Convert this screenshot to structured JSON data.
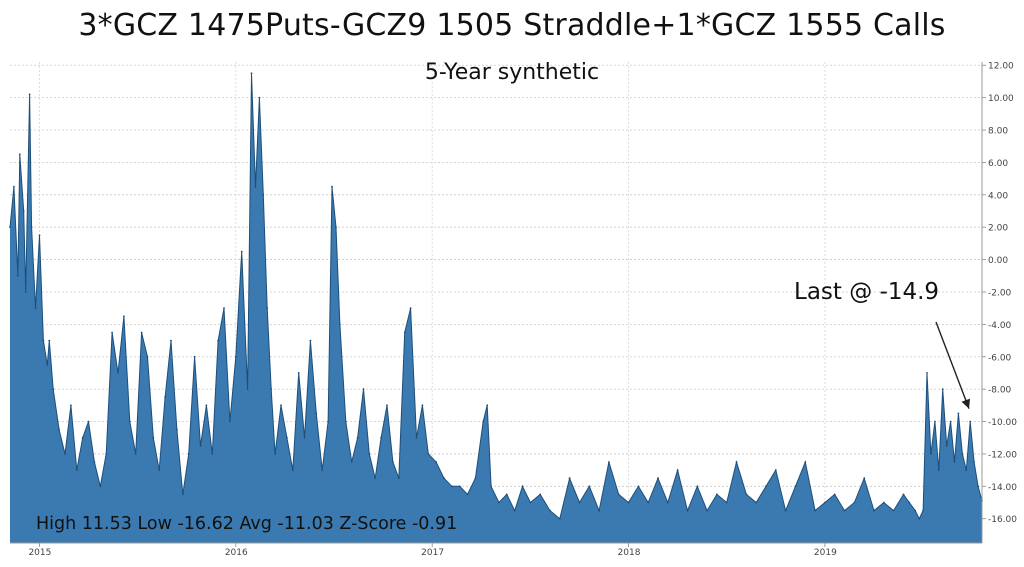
{
  "title": "3*GCZ 1475Puts-GCZ9 1505 Straddle+1*GCZ 1555 Calls",
  "subtitle": "5-Year synthetic",
  "annotation_last": "Last @ -14.9",
  "stats_text": "High 11.53 Low -16.62 Avg -11.03 Z-Score -0.91",
  "chart_data": {
    "type": "area",
    "title": "3*GCZ 1475Puts-GCZ9 1505 Straddle+1*GCZ 1555 Calls",
    "subtitle": "5-Year synthetic",
    "xlabel": "",
    "ylabel": "",
    "x_ticks": [
      "2015",
      "2016",
      "2017",
      "2018",
      "2019"
    ],
    "y_ticks": [
      "12.00",
      "10.00",
      "8.00",
      "6.00",
      "4.00",
      "2.00",
      "0.00",
      "-2.00",
      "-4.00",
      "-6.00",
      "-8.00",
      "-10.00",
      "-12.00",
      "-14.00",
      "-16.00"
    ],
    "ylim": [
      -17.5,
      12.2
    ],
    "xlim": [
      2014.85,
      2019.8
    ],
    "grid": true,
    "y_axis_side": "right",
    "fill_color": "#3b7ab0",
    "edge_color": "#1d4f7a",
    "high": 11.53,
    "low": -16.62,
    "avg": -11.03,
    "z_score": -0.91,
    "last": -14.9,
    "x": [
      2014.85,
      2014.87,
      2014.89,
      2014.9,
      2014.92,
      2014.93,
      2014.95,
      2014.96,
      2014.98,
      2015.0,
      2015.02,
      2015.04,
      2015.05,
      2015.07,
      2015.1,
      2015.13,
      2015.16,
      2015.19,
      2015.22,
      2015.25,
      2015.28,
      2015.31,
      2015.34,
      2015.37,
      2015.4,
      2015.43,
      2015.46,
      2015.49,
      2015.52,
      2015.55,
      2015.58,
      2015.61,
      2015.64,
      2015.67,
      2015.7,
      2015.73,
      2015.76,
      2015.79,
      2015.82,
      2015.85,
      2015.88,
      2015.91,
      2015.94,
      2015.97,
      2016.0,
      2016.03,
      2016.06,
      2016.08,
      2016.1,
      2016.12,
      2016.14,
      2016.16,
      2016.18,
      2016.2,
      2016.23,
      2016.26,
      2016.29,
      2016.32,
      2016.35,
      2016.38,
      2016.41,
      2016.44,
      2016.47,
      2016.49,
      2016.51,
      2016.53,
      2016.56,
      2016.59,
      2016.62,
      2016.65,
      2016.68,
      2016.71,
      2016.74,
      2016.77,
      2016.8,
      2016.83,
      2016.86,
      2016.89,
      2016.92,
      2016.95,
      2016.98,
      2017.02,
      2017.06,
      2017.1,
      2017.14,
      2017.18,
      2017.22,
      2017.26,
      2017.28,
      2017.3,
      2017.34,
      2017.38,
      2017.42,
      2017.46,
      2017.5,
      2017.55,
      2017.6,
      2017.65,
      2017.7,
      2017.75,
      2017.8,
      2017.85,
      2017.9,
      2017.95,
      2018.0,
      2018.05,
      2018.1,
      2018.15,
      2018.2,
      2018.25,
      2018.3,
      2018.35,
      2018.4,
      2018.45,
      2018.5,
      2018.55,
      2018.6,
      2018.65,
      2018.7,
      2018.75,
      2018.8,
      2018.85,
      2018.9,
      2018.95,
      2019.0,
      2019.05,
      2019.1,
      2019.15,
      2019.2,
      2019.25,
      2019.3,
      2019.35,
      2019.4,
      2019.43,
      2019.46,
      2019.48,
      2019.5,
      2019.52,
      2019.54,
      2019.56,
      2019.58,
      2019.6,
      2019.62,
      2019.64,
      2019.66,
      2019.68,
      2019.7,
      2019.72,
      2019.74,
      2019.76,
      2019.78,
      2019.8
    ],
    "values": [
      2.0,
      4.5,
      -1.0,
      6.5,
      3.0,
      -2.0,
      10.2,
      2.0,
      -3.0,
      1.5,
      -5.0,
      -6.5,
      -5.0,
      -8.0,
      -10.5,
      -12.0,
      -9.0,
      -13.0,
      -11.0,
      -10.0,
      -12.5,
      -14.0,
      -12.0,
      -4.5,
      -7.0,
      -3.5,
      -10.0,
      -12.0,
      -4.5,
      -6.0,
      -11.0,
      -13.0,
      -8.5,
      -5.0,
      -10.5,
      -14.5,
      -12.0,
      -6.0,
      -11.5,
      -9.0,
      -12.0,
      -5.0,
      -3.0,
      -10.0,
      -6.0,
      0.5,
      -8.0,
      11.5,
      4.5,
      10.0,
      4.0,
      -3.0,
      -8.0,
      -12.0,
      -9.0,
      -11.0,
      -13.0,
      -7.0,
      -11.0,
      -5.0,
      -9.5,
      -13.0,
      -10.0,
      4.5,
      2.0,
      -4.0,
      -10.0,
      -12.5,
      -11.0,
      -8.0,
      -12.0,
      -13.5,
      -11.0,
      -9.0,
      -12.5,
      -13.5,
      -4.5,
      -3.0,
      -11.0,
      -9.0,
      -12.0,
      -12.5,
      -13.5,
      -14.0,
      -14.0,
      -14.5,
      -13.5,
      -10.0,
      -9.0,
      -14.0,
      -15.0,
      -14.5,
      -15.5,
      -14.0,
      -15.0,
      -14.5,
      -15.5,
      -16.0,
      -13.5,
      -15.0,
      -14.0,
      -15.5,
      -12.5,
      -14.5,
      -15.0,
      -14.0,
      -15.0,
      -13.5,
      -15.0,
      -13.0,
      -15.5,
      -14.0,
      -15.5,
      -14.5,
      -15.0,
      -12.5,
      -14.5,
      -15.0,
      -14.0,
      -13.0,
      -15.5,
      -14.0,
      -12.5,
      -15.5,
      -15.0,
      -14.5,
      -15.5,
      -15.0,
      -13.5,
      -15.5,
      -15.0,
      -15.5,
      -14.5,
      -15.0,
      -15.5,
      -16.0,
      -15.5,
      -7.0,
      -12.0,
      -10.0,
      -13.0,
      -8.0,
      -11.5,
      -10.0,
      -12.5,
      -9.5,
      -12.0,
      -13.0,
      -10.0,
      -12.5,
      -14.0,
      -14.9
    ]
  }
}
